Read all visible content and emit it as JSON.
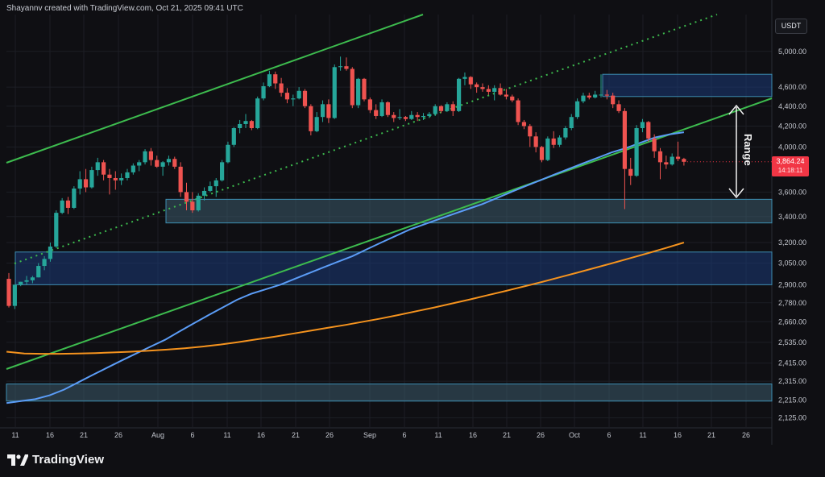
{
  "header": {
    "text": "Shayannv created with TradingView.com, Oct 21, 2025 09:41 UTC"
  },
  "currency_badge": "USDT",
  "current_price": {
    "value": "3,864.24",
    "countdown": "14:18:11"
  },
  "annotation": {
    "label": "Range"
  },
  "footer": {
    "brand": "TradingView"
  },
  "colors": {
    "background": "#0f0f13",
    "grid": "#1c1e25",
    "up": "#26a69a",
    "down": "#ef5350",
    "ma_fast": "#5b9cf6",
    "ma_slow": "#f5931e",
    "channel": "#3dbb4e",
    "zone_blue": "#1c3a78",
    "zone_gray": "#3d5b6b"
  },
  "chart_data": {
    "type": "candlestick",
    "title": "",
    "xlabel": "",
    "ylabel": "",
    "scale": "log",
    "ylim": [
      2080,
      5450
    ],
    "x_ticks": [
      "11",
      "16",
      "21",
      "26",
      "Aug",
      "6",
      "11",
      "16",
      "21",
      "26",
      "Sep",
      "6",
      "11",
      "16",
      "21",
      "26",
      "Oct",
      "6",
      "11",
      "16",
      "21",
      "26"
    ],
    "y_ticks": [
      "5,000.00",
      "4,600.00",
      "4,400.00",
      "4,200.00",
      "4,000.00",
      "3,600.00",
      "3,400.00",
      "3,200.00",
      "3,050.00",
      "2,900.00",
      "2,780.00",
      "2,660.00",
      "2,535.00",
      "2,415.00",
      "2,315.00",
      "2,215.00",
      "2,125.00"
    ],
    "candles": [
      [
        2940,
        2980,
        2750,
        2760
      ],
      [
        2760,
        2900,
        2740,
        2900
      ],
      [
        2900,
        2920,
        2890,
        2920
      ],
      [
        2920,
        2960,
        2900,
        2930
      ],
      [
        2930,
        2960,
        2910,
        2950
      ],
      [
        2950,
        3050,
        2950,
        3030
      ],
      [
        3030,
        3100,
        3000,
        3080
      ],
      [
        3080,
        3200,
        3060,
        3170
      ],
      [
        3170,
        3450,
        3160,
        3430
      ],
      [
        3430,
        3550,
        3420,
        3530
      ],
      [
        3530,
        3560,
        3420,
        3470
      ],
      [
        3470,
        3650,
        3460,
        3630
      ],
      [
        3630,
        3780,
        3580,
        3710
      ],
      [
        3710,
        3800,
        3600,
        3640
      ],
      [
        3640,
        3820,
        3630,
        3790
      ],
      [
        3790,
        3900,
        3740,
        3860
      ],
      [
        3860,
        3880,
        3700,
        3750
      ],
      [
        3750,
        3800,
        3580,
        3720
      ],
      [
        3720,
        3780,
        3620,
        3700
      ],
      [
        3700,
        3760,
        3660,
        3720
      ],
      [
        3720,
        3800,
        3700,
        3770
      ],
      [
        3770,
        3850,
        3750,
        3830
      ],
      [
        3830,
        3880,
        3780,
        3860
      ],
      [
        3860,
        3980,
        3840,
        3960
      ],
      [
        3960,
        3990,
        3830,
        3880
      ],
      [
        3880,
        3920,
        3810,
        3820
      ],
      [
        3820,
        3870,
        3740,
        3860
      ],
      [
        3860,
        3920,
        3830,
        3890
      ],
      [
        3890,
        3910,
        3800,
        3820
      ],
      [
        3820,
        3860,
        3560,
        3600
      ],
      [
        3600,
        3680,
        3450,
        3520
      ],
      [
        3520,
        3600,
        3430,
        3450
      ],
      [
        3450,
        3590,
        3440,
        3570
      ],
      [
        3570,
        3640,
        3530,
        3610
      ],
      [
        3610,
        3690,
        3600,
        3650
      ],
      [
        3650,
        3720,
        3560,
        3700
      ],
      [
        3700,
        3880,
        3690,
        3860
      ],
      [
        3860,
        4050,
        3850,
        4020
      ],
      [
        4020,
        4190,
        4000,
        4180
      ],
      [
        4180,
        4260,
        4130,
        4220
      ],
      [
        4220,
        4320,
        4180,
        4250
      ],
      [
        4250,
        4260,
        4160,
        4180
      ],
      [
        4180,
        4500,
        4170,
        4480
      ],
      [
        4480,
        4650,
        4460,
        4610
      ],
      [
        4610,
        4780,
        4600,
        4740
      ],
      [
        4740,
        4770,
        4580,
        4640
      ],
      [
        4640,
        4700,
        4500,
        4540
      ],
      [
        4540,
        4590,
        4430,
        4470
      ],
      [
        4470,
        4520,
        4400,
        4480
      ],
      [
        4480,
        4600,
        4470,
        4560
      ],
      [
        4560,
        4580,
        4380,
        4400
      ],
      [
        4400,
        4420,
        4110,
        4150
      ],
      [
        4150,
        4340,
        4140,
        4290
      ],
      [
        4290,
        4460,
        4240,
        4420
      ],
      [
        4420,
        4470,
        4230,
        4280
      ],
      [
        4280,
        4850,
        4270,
        4820
      ],
      [
        4820,
        4940,
        4780,
        4830
      ],
      [
        4830,
        4930,
        4780,
        4800
      ],
      [
        4800,
        4820,
        4380,
        4410
      ],
      [
        4410,
        4700,
        4380,
        4690
      ],
      [
        4690,
        4700,
        4450,
        4470
      ],
      [
        4470,
        4490,
        4330,
        4360
      ],
      [
        4360,
        4420,
        4270,
        4300
      ],
      [
        4300,
        4470,
        4290,
        4440
      ],
      [
        4440,
        4450,
        4290,
        4310
      ],
      [
        4310,
        4340,
        4240,
        4280
      ],
      [
        4280,
        4370,
        4260,
        4290
      ],
      [
        4290,
        4300,
        4250,
        4270
      ],
      [
        4270,
        4350,
        4260,
        4310
      ],
      [
        4310,
        4340,
        4250,
        4290
      ],
      [
        4290,
        4330,
        4260,
        4300
      ],
      [
        4300,
        4340,
        4280,
        4320
      ],
      [
        4320,
        4420,
        4300,
        4400
      ],
      [
        4400,
        4410,
        4330,
        4350
      ],
      [
        4350,
        4440,
        4340,
        4420
      ],
      [
        4420,
        4450,
        4300,
        4350
      ],
      [
        4350,
        4700,
        4340,
        4690
      ],
      [
        4690,
        4760,
        4620,
        4710
      ],
      [
        4710,
        4720,
        4580,
        4630
      ],
      [
        4630,
        4650,
        4540,
        4600
      ],
      [
        4600,
        4640,
        4550,
        4580
      ],
      [
        4580,
        4620,
        4520,
        4550
      ],
      [
        4550,
        4620,
        4460,
        4590
      ],
      [
        4590,
        4640,
        4510,
        4520
      ],
      [
        4520,
        4580,
        4470,
        4500
      ],
      [
        4500,
        4520,
        4440,
        4460
      ],
      [
        4460,
        4480,
        4210,
        4240
      ],
      [
        4240,
        4260,
        4170,
        4200
      ],
      [
        4200,
        4220,
        4000,
        4100
      ],
      [
        4100,
        4140,
        3950,
        4000
      ],
      [
        4000,
        4010,
        3860,
        3880
      ],
      [
        3880,
        4100,
        3870,
        4080
      ],
      [
        4080,
        4150,
        3990,
        4020
      ],
      [
        4020,
        4110,
        4000,
        4090
      ],
      [
        4090,
        4200,
        4070,
        4180
      ],
      [
        4180,
        4320,
        4160,
        4290
      ],
      [
        4290,
        4480,
        4270,
        4450
      ],
      [
        4450,
        4540,
        4430,
        4510
      ],
      [
        4510,
        4540,
        4470,
        4490
      ],
      [
        4490,
        4560,
        4480,
        4520
      ],
      [
        4520,
        4740,
        4490,
        4520
      ],
      [
        4520,
        4570,
        4470,
        4510
      ],
      [
        4510,
        4540,
        4380,
        4420
      ],
      [
        4420,
        4460,
        4330,
        4350
      ],
      [
        4350,
        4380,
        3460,
        3800
      ],
      [
        3800,
        3900,
        3660,
        3740
      ],
      [
        3740,
        4210,
        3730,
        4180
      ],
      [
        4180,
        4270,
        4140,
        4240
      ],
      [
        4240,
        4250,
        4050,
        4080
      ],
      [
        4080,
        4120,
        3900,
        3960
      ],
      [
        3960,
        3990,
        3710,
        3860
      ],
      [
        3860,
        3920,
        3800,
        3840
      ],
      [
        3840,
        3940,
        3830,
        3910
      ],
      [
        3910,
        4050,
        3870,
        3890
      ],
      [
        3890,
        3900,
        3830,
        3864
      ]
    ],
    "series": [
      {
        "name": "",
        "values": [
          2200,
          2210,
          2220,
          2240,
          2270,
          2310,
          2350,
          2390,
          2430,
          2470,
          2510,
          2550,
          2600,
          2650,
          2700,
          2750,
          2800,
          2840,
          2870,
          2900,
          2940,
          2980,
          3020,
          3060,
          3100,
          3150,
          3200,
          3250,
          3300,
          3340,
          3380,
          3420,
          3460,
          3500,
          3550,
          3600,
          3650,
          3700,
          3750,
          3800,
          3850,
          3900,
          3950,
          3990,
          4040,
          4090,
          4120,
          4140
        ]
      },
      {
        "name": "",
        "values": [
          2480,
          2470,
          2468,
          2468,
          2470,
          2472,
          2476,
          2480,
          2486,
          2492,
          2500,
          2510,
          2522,
          2536,
          2552,
          2568,
          2586,
          2604,
          2622,
          2640,
          2660,
          2680,
          2702,
          2726,
          2750,
          2776,
          2802,
          2830,
          2858,
          2888,
          2918,
          2950,
          2982,
          3016,
          3050,
          3086,
          3122,
          3160,
          3200
        ]
      }
    ],
    "zones": [
      {
        "low": 3350,
        "high": 3540
      },
      {
        "low": 2900,
        "high": 3130
      },
      {
        "low": 2210,
        "high": 2300
      },
      {
        "low": 4500,
        "high": 4740
      }
    ]
  }
}
